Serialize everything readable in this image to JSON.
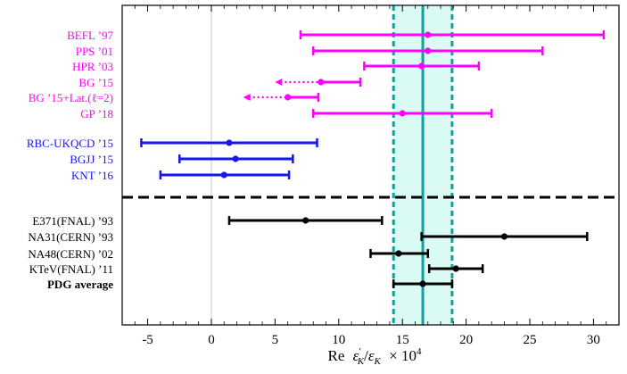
{
  "chart_data": {
    "type": "errorbar",
    "xlabel": "Re ε′_K/ε_K × 10^4",
    "xlabel_parts": {
      "re": "Re",
      "eps": "ε",
      "prime": "′",
      "sub": "K",
      "slash": "/",
      "eps2": "ε",
      "sub2": "K",
      "times": "× 10",
      "exp": "4"
    },
    "xlim": [
      -7,
      32
    ],
    "xticks": [
      {
        "value": -5,
        "label": "-5"
      },
      {
        "value": 0,
        "label": "0"
      },
      {
        "value": 5,
        "label": "5"
      },
      {
        "value": 10,
        "label": "10"
      },
      {
        "value": 15,
        "label": "15"
      },
      {
        "value": 20,
        "label": "20"
      },
      {
        "value": 25,
        "label": "25"
      },
      {
        "value": 30,
        "label": "30"
      }
    ],
    "reference_line": 0,
    "pdg_band": {
      "center": 16.6,
      "low": 14.3,
      "high": 18.9,
      "band_color": "#d9fbf3",
      "line_color": "#109f9a"
    },
    "separator": "dashed",
    "colors": {
      "magenta": "#ff00ff",
      "blue": "#1616ee",
      "black": "#000000"
    },
    "series": [
      {
        "label": "BEFL ’97",
        "group": "magenta",
        "center": 17.0,
        "low": 7.0,
        "high": 30.8,
        "lower_limit_arrow": false
      },
      {
        "label": "PPS ’01",
        "group": "magenta",
        "center": 17.0,
        "low": 8.0,
        "high": 26.0,
        "lower_limit_arrow": false
      },
      {
        "label": "HPR ’03",
        "group": "magenta",
        "center": 16.5,
        "low": 12.0,
        "high": 21.0,
        "lower_limit_arrow": false
      },
      {
        "label": "BG ’15",
        "group": "magenta",
        "center": 8.6,
        "low": 5.0,
        "high": 11.7,
        "lower_limit_arrow": true
      },
      {
        "label": "BG ’15+Lat.(ℓ=2)",
        "group": "magenta",
        "center": 6.0,
        "low": 2.5,
        "high": 8.4,
        "lower_limit_arrow": true
      },
      {
        "label": "GP ’18",
        "group": "magenta",
        "center": 15.0,
        "low": 8.0,
        "high": 22.0,
        "lower_limit_arrow": false
      },
      {
        "label": "RBC-UKQCD ’15",
        "group": "blue",
        "center": 1.4,
        "low": -5.5,
        "high": 8.3,
        "lower_limit_arrow": false
      },
      {
        "label": "BGJJ ’15",
        "group": "blue",
        "center": 1.9,
        "low": -2.5,
        "high": 6.4,
        "lower_limit_arrow": false
      },
      {
        "label": "KNT ’16",
        "group": "blue",
        "center": 1.0,
        "low": -4.0,
        "high": 6.1,
        "lower_limit_arrow": false
      },
      {
        "label": "E371(FNAL) ’93",
        "group": "black",
        "center": 7.4,
        "low": 1.4,
        "high": 13.4,
        "lower_limit_arrow": false
      },
      {
        "label": "NA31(CERN) ’93",
        "group": "black",
        "center": 23.0,
        "low": 16.5,
        "high": 29.5,
        "lower_limit_arrow": false
      },
      {
        "label": "NA48(CERN) ’02",
        "group": "black",
        "center": 14.7,
        "low": 12.5,
        "high": 17.0,
        "lower_limit_arrow": false
      },
      {
        "label": "KTeV(FNAL) ’11",
        "group": "black",
        "center": 19.2,
        "low": 17.1,
        "high": 21.3,
        "lower_limit_arrow": false
      },
      {
        "label": "PDG average",
        "group": "black",
        "center": 16.6,
        "low": 14.3,
        "high": 18.9,
        "lower_limit_arrow": false,
        "bold": true
      }
    ]
  }
}
